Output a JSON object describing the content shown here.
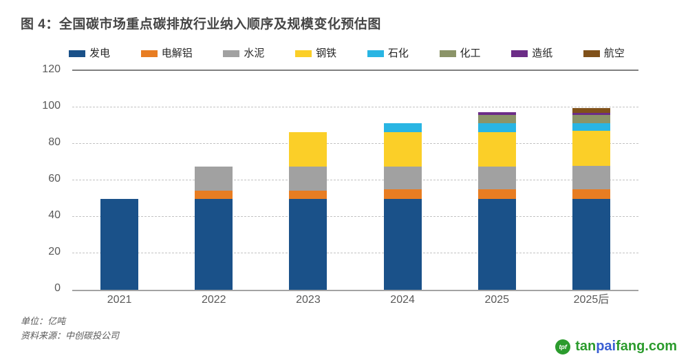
{
  "title": "图 4：全国碳市场重点碳排放行业纳入顺序及规模变化预估图",
  "chart_data": {
    "type": "bar",
    "stacked": true,
    "title": "全国碳市场重点碳排放行业纳入顺序及规模变化预估图",
    "categories": [
      "2021",
      "2022",
      "2023",
      "2024",
      "2025",
      "2025后"
    ],
    "series": [
      {
        "name": "发电",
        "color": "#1a5189",
        "values": [
          50,
          50,
          50,
          50,
          50,
          50
        ]
      },
      {
        "name": "电解铝",
        "color": "#e87d22",
        "values": [
          0,
          4.5,
          4.5,
          5,
          5,
          5
        ]
      },
      {
        "name": "水泥",
        "color": "#a1a1a1",
        "values": [
          0,
          13,
          13,
          12.5,
          12.5,
          13
        ]
      },
      {
        "name": "钢铁",
        "color": "#fbcf28",
        "values": [
          0,
          0,
          19,
          19,
          19,
          19
        ]
      },
      {
        "name": "石化",
        "color": "#29b5e3",
        "values": [
          0,
          0,
          0,
          5,
          5,
          4.5
        ]
      },
      {
        "name": "化工",
        "color": "#8b9468",
        "values": [
          0,
          0,
          0,
          0,
          4.5,
          4.5
        ]
      },
      {
        "name": "造纸",
        "color": "#6c2d87",
        "values": [
          0,
          0,
          0,
          0,
          1.5,
          1
        ]
      },
      {
        "name": "航空",
        "color": "#80511a",
        "values": [
          0,
          0,
          0,
          0,
          0,
          2.5
        ]
      }
    ],
    "ylim": [
      0,
      120
    ],
    "yticks": [
      0,
      20,
      40,
      60,
      80,
      100,
      120
    ],
    "grid": "horizontal-dashed",
    "legend_position": "top",
    "xlabel": "",
    "ylabel": ""
  },
  "footer": {
    "unit_note": "单位：亿吨",
    "source_note": "资料来源：中创碳投公司"
  },
  "logo": {
    "icon_text": "tpf",
    "part1": "tan",
    "part2": "pai",
    "part3": "fang.com"
  },
  "colors": {
    "title_text": "#454545",
    "tick_text": "#595959",
    "grid_dashed": "#c2c2c2",
    "plot_top_border": "#7f7f7f",
    "axis_line": "#a3a3a3",
    "logo_green": "#2b9b2d",
    "logo_blue": "#3a5fd3"
  }
}
